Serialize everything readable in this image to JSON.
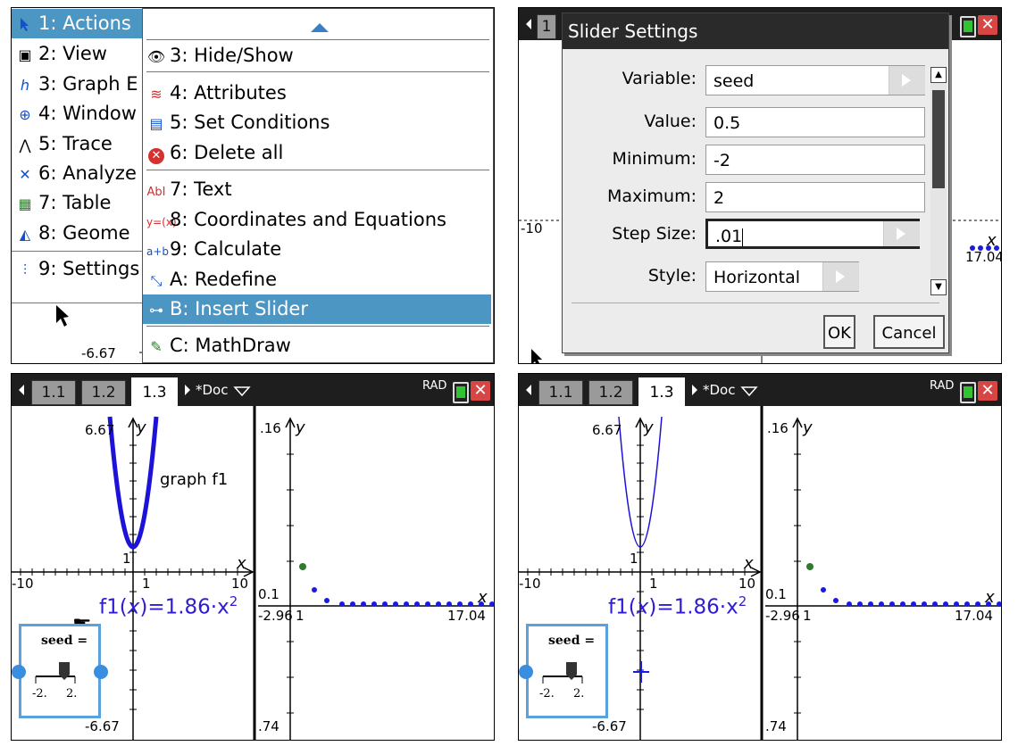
{
  "menu_left": {
    "items": [
      {
        "num": "1:",
        "label": "Actions"
      },
      {
        "num": "2:",
        "label": "View"
      },
      {
        "num": "3:",
        "label": "Graph E"
      },
      {
        "num": "4:",
        "label": "Window"
      },
      {
        "num": "5:",
        "label": "Trace"
      },
      {
        "num": "6:",
        "label": "Analyze"
      },
      {
        "num": "7:",
        "label": "Table"
      },
      {
        "num": "8:",
        "label": "Geome"
      },
      {
        "num": "9:",
        "label": "Settings"
      }
    ]
  },
  "menu_actions": {
    "items": [
      {
        "label": "3: Hide/Show",
        "icon": "eye-icon"
      },
      {
        "label": "4: Attributes",
        "icon": "attributes-icon"
      },
      {
        "label": "5: Set Conditions",
        "icon": "conditions-icon"
      },
      {
        "label": "6: Delete all",
        "icon": "delete-icon"
      },
      {
        "label": "7: Text",
        "icon": "text-icon"
      },
      {
        "label": "8: Coordinates and Equations",
        "icon": "coordinates-icon"
      },
      {
        "label": "9: Calculate",
        "icon": "calculate-icon"
      },
      {
        "label": "A: Redefine",
        "icon": "redefine-icon"
      },
      {
        "label": "B: Insert Slider",
        "icon": "slider-icon"
      },
      {
        "label": "C: MathDraw",
        "icon": "mathdraw-icon"
      }
    ],
    "selected_index": 8
  },
  "panel1_graph": {
    "y_min_label": "-6.67"
  },
  "slider_settings": {
    "title": "Slider Settings",
    "variable_label": "Variable:",
    "variable_value": "seed",
    "value_label": "Value:",
    "value_value": "0.5",
    "minimum_label": "Minimum:",
    "minimum_value": "-2",
    "maximum_label": "Maximum:",
    "maximum_value": "2",
    "step_label": "Step Size:",
    "step_value": ".01",
    "style_label": "Style:",
    "style_value": "Horizontal",
    "ok_label": "OK",
    "cancel_label": "Cancel",
    "bg_tab_label": "1",
    "bg_x_label": "-10",
    "bg_xmax_label": "17.04",
    "bg_x_axis": "x"
  },
  "document_bar": {
    "tabs": [
      "1.1",
      "1.2",
      "1.3"
    ],
    "active_tab": 2,
    "doc_name": "*Doc",
    "mode": "RAD",
    "close": "✕"
  },
  "graph_left": {
    "y_max": "6.67",
    "y_min": "-6.67",
    "x_min": "-10",
    "x_max": "10",
    "y_tick": "1",
    "x_tick": "1",
    "x_axis": "x",
    "y_axis": "y",
    "graph_label": "graph f1",
    "function_lhs": "f1",
    "function_var": "x",
    "function_rhs": "=1.86·x",
    "function_exp": "2"
  },
  "graph_right": {
    "y_max": ".16",
    "y_tick": "0.1",
    "y_min": ".74",
    "x_min": "-2.96",
    "x_tick": "1",
    "x_max": "17.04",
    "x_axis": "x",
    "y_axis": "y"
  },
  "slider_widget": {
    "var_name": "seed",
    "eq": "=",
    "min_label": "-2.",
    "max_label": "2."
  },
  "colors": {
    "accent_blue": "#4c96c4",
    "curve_blue": "#1c12d8",
    "point_green": "#2f7a2f",
    "point_blue": "#1a1ae0",
    "slider_border": "#5aa1dd"
  }
}
